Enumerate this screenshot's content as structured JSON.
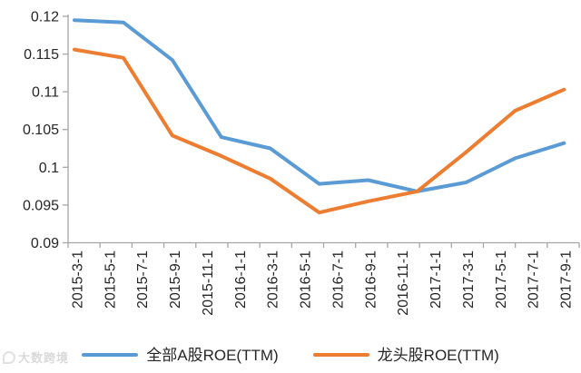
{
  "watermark": {
    "text": "大数跨境"
  },
  "chart_data": {
    "type": "line",
    "title": "",
    "x": [
      "2015-3-1",
      "2015-6-1",
      "2015-9-1",
      "2015-12-1",
      "2016-3-1",
      "2016-6-1",
      "2016-9-1",
      "2016-12-1",
      "2017-3-1",
      "2017-6-1",
      "2017-9-1"
    ],
    "x_axis_tick_labels": [
      "2015-3-1",
      "2015-5-1",
      "2015-7-1",
      "2015-9-1",
      "2015-11-1",
      "2016-1-1",
      "2016-3-1",
      "2016-5-1",
      "2016-7-1",
      "2016-9-1",
      "2016-11-1",
      "2017-1-1",
      "2017-3-1",
      "2017-5-1",
      "2017-7-1",
      "2017-9-1"
    ],
    "y_tick_labels": [
      "0.12",
      "0.115",
      "0.11",
      "0.105",
      "0.1",
      "0.095",
      "0.09"
    ],
    "ylim": [
      0.09,
      0.12
    ],
    "y_step": 0.005,
    "grid": false,
    "legend_position": "bottom",
    "series": [
      {
        "name": "全部A股ROE(TTM)",
        "color": "#5B9BD5",
        "values": [
          0.1195,
          0.1192,
          0.1142,
          0.104,
          0.1025,
          0.0978,
          0.0983,
          0.0968,
          0.098,
          0.1012,
          0.1032
        ]
      },
      {
        "name": "龙头股ROE(TTM)",
        "color": "#ED7D31",
        "values": [
          0.1156,
          0.1145,
          0.1042,
          0.1015,
          0.0985,
          0.094,
          0.0955,
          0.0968,
          0.102,
          0.1075,
          0.1103
        ]
      }
    ],
    "axis_color": "#A6A6A6",
    "text_color": "#262626"
  }
}
